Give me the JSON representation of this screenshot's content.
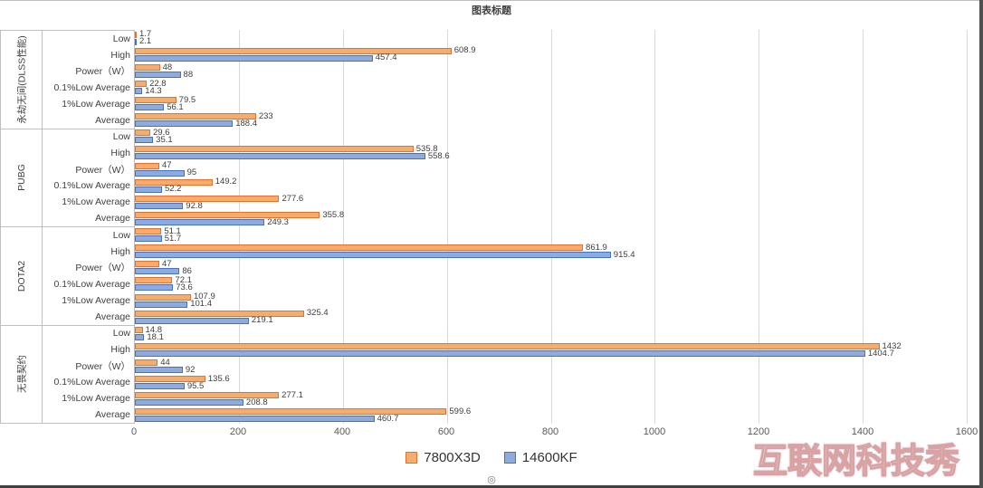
{
  "watermark": "互联网科技秀",
  "icons": {
    "scroll_dot": "◎"
  },
  "chart_data": {
    "type": "bar",
    "orientation": "horizontal",
    "title": "图表标题",
    "legend_position": "bottom",
    "grid": true,
    "x_axis": {
      "min": 0,
      "max": 1600,
      "ticks": [
        0,
        200,
        400,
        600,
        800,
        1000,
        1200,
        1400,
        1600
      ]
    },
    "series": [
      {
        "name": "7800X3D",
        "fill": "#F5AD6F",
        "border": "#E8702A"
      },
      {
        "name": "14600KF",
        "fill": "#8FAADC",
        "border": "#4472C4"
      }
    ],
    "groups": [
      {
        "name": "永劫无间(DLSS性能)",
        "rows": [
          {
            "label": "Low",
            "values": [
              1.7,
              2.1
            ]
          },
          {
            "label": "High",
            "values": [
              608.9,
              457.4
            ]
          },
          {
            "label": "Power（W）",
            "values": [
              48,
              88
            ]
          },
          {
            "label": "0.1%Low Average",
            "values": [
              22.8,
              14.3
            ]
          },
          {
            "label": "1%Low Average",
            "values": [
              79.5,
              56.1
            ]
          },
          {
            "label": "Average",
            "values": [
              233,
              188.4
            ]
          }
        ]
      },
      {
        "name": "PUBG",
        "rows": [
          {
            "label": "Low",
            "values": [
              29.6,
              35.1
            ]
          },
          {
            "label": "High",
            "values": [
              535.8,
              558.6
            ]
          },
          {
            "label": "Power（W）",
            "values": [
              47,
              95
            ]
          },
          {
            "label": "0.1%Low Average",
            "values": [
              149.2,
              52.2
            ]
          },
          {
            "label": "1%Low Average",
            "values": [
              277.6,
              92.8
            ]
          },
          {
            "label": "Average",
            "values": [
              355.8,
              249.3
            ]
          }
        ]
      },
      {
        "name": "DOTA2",
        "rows": [
          {
            "label": "Low",
            "values": [
              51.1,
              51.7
            ]
          },
          {
            "label": "High",
            "values": [
              861.9,
              915.4
            ]
          },
          {
            "label": "Power（W）",
            "values": [
              47,
              86
            ]
          },
          {
            "label": "0.1%Low Average",
            "values": [
              72.1,
              73.6
            ]
          },
          {
            "label": "1%Low Average",
            "values": [
              107.9,
              101.4
            ]
          },
          {
            "label": "Average",
            "values": [
              325.4,
              219.1
            ]
          }
        ]
      },
      {
        "name": "无畏契约",
        "rows": [
          {
            "label": "Low",
            "values": [
              14.8,
              18.1
            ]
          },
          {
            "label": "High",
            "values": [
              1432,
              1404.7
            ]
          },
          {
            "label": "Power（W）",
            "values": [
              44,
              92
            ]
          },
          {
            "label": "0.1%Low Average",
            "values": [
              135.6,
              95.5
            ]
          },
          {
            "label": "1%Low Average",
            "values": [
              277.1,
              208.8
            ]
          },
          {
            "label": "Average",
            "values": [
              599.6,
              460.7
            ]
          }
        ]
      }
    ]
  }
}
